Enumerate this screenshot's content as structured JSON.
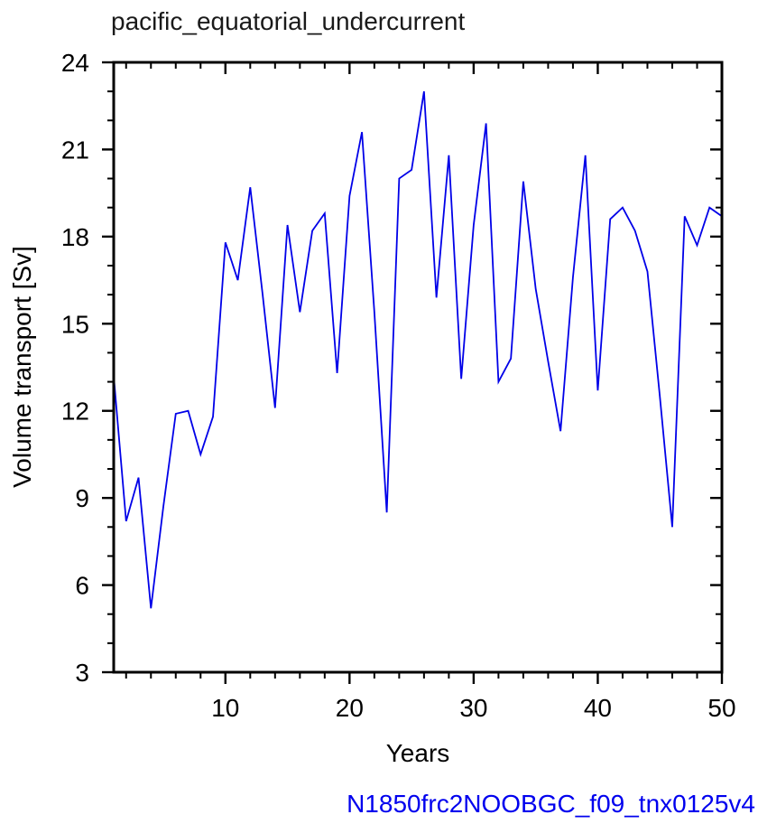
{
  "title": "pacific_equatorial_undercurrent",
  "annotation": {
    "text": "N1850frc2NOOBGC_f09_tnx0125v4",
    "color": "#0000ee"
  },
  "colors": {
    "line": "#0000e8",
    "axis": "#000000",
    "title_text": "#1a1a1a",
    "tick_label_text": "#000000",
    "background": "#ffffff"
  },
  "chart_data": {
    "type": "line",
    "title": "pacific_equatorial_undercurrent",
    "xlabel": "Years",
    "ylabel": "Volume transport [Sv]",
    "x_range": [
      1,
      50
    ],
    "y_range": [
      3,
      24
    ],
    "x_major_ticks": [
      10,
      20,
      30,
      40,
      50
    ],
    "x_major_tick_labels": [
      "10",
      "20",
      "30",
      "40",
      "50"
    ],
    "x_minor_step": 2,
    "y_major_ticks": [
      3,
      6,
      9,
      12,
      15,
      18,
      21,
      24
    ],
    "y_major_tick_labels": [
      "3",
      "6",
      "9",
      "12",
      "15",
      "18",
      "21",
      "24"
    ],
    "y_minor_step": 1,
    "grid": false,
    "legend": "none",
    "series": [
      {
        "name": "N1850frc2NOOBGC_f09_tnx0125v4",
        "color": "#0000e8",
        "x": [
          1,
          2,
          3,
          4,
          5,
          6,
          7,
          8,
          9,
          10,
          11,
          12,
          13,
          14,
          15,
          16,
          17,
          18,
          19,
          20,
          21,
          22,
          23,
          24,
          25,
          26,
          27,
          28,
          29,
          30,
          31,
          32,
          33,
          34,
          35,
          36,
          37,
          38,
          39,
          40,
          41,
          42,
          43,
          44,
          45,
          46,
          47,
          48,
          49,
          50
        ],
        "values": [
          13.2,
          8.2,
          9.7,
          5.2,
          8.7,
          11.9,
          12.0,
          10.5,
          11.8,
          17.8,
          16.5,
          19.7,
          16.0,
          12.1,
          18.4,
          15.4,
          18.2,
          18.8,
          13.3,
          19.4,
          21.6,
          15.4,
          8.5,
          20.0,
          20.3,
          23.0,
          15.9,
          20.8,
          13.1,
          18.4,
          21.9,
          13.0,
          13.8,
          19.9,
          16.2,
          13.7,
          11.3,
          16.6,
          20.8,
          12.7,
          18.6,
          19.0,
          18.2,
          16.8,
          12.5,
          8.0,
          18.7,
          17.7,
          19.0,
          18.7
        ]
      }
    ]
  }
}
